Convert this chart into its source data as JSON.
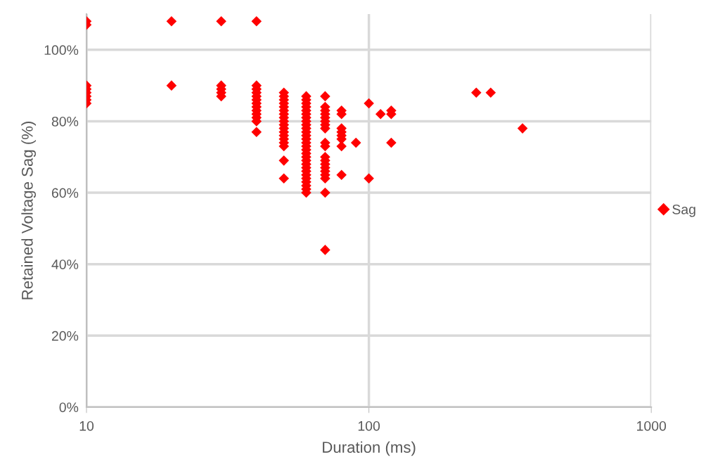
{
  "chart_data": {
    "type": "scatter",
    "xlabel": "Duration (ms)",
    "ylabel": "Retained Voltage Sag (%)",
    "log": "x",
    "xlim": [
      10,
      1000
    ],
    "xticks": [
      10,
      100,
      1000
    ],
    "ylim": [
      0,
      110
    ],
    "yticks": [
      {
        "value": 0,
        "label": "0%"
      },
      {
        "value": 20,
        "label": "20%"
      },
      {
        "value": 40,
        "label": "40%"
      },
      {
        "value": 60,
        "label": "60%"
      },
      {
        "value": 80,
        "label": "80%"
      },
      {
        "value": 100,
        "label": "100%"
      }
    ],
    "grid": true,
    "legend": "right",
    "marker": "diamond",
    "series": [
      {
        "name": "Sag",
        "color": "#ff0000",
        "x": [
          10,
          10,
          10,
          10,
          10,
          10,
          10,
          10,
          20,
          20,
          30,
          30,
          30,
          30,
          30,
          40,
          40,
          40,
          40,
          40,
          40,
          40,
          40,
          40,
          40,
          40,
          40,
          40,
          50,
          50,
          50,
          50,
          50,
          50,
          50,
          50,
          50,
          50,
          50,
          50,
          50,
          50,
          50,
          50,
          50,
          50,
          60,
          60,
          60,
          60,
          60,
          60,
          60,
          60,
          60,
          60,
          60,
          60,
          60,
          60,
          60,
          60,
          60,
          60,
          60,
          60,
          60,
          60,
          60,
          60,
          60,
          60,
          60,
          60,
          70,
          70,
          70,
          70,
          70,
          70,
          70,
          70,
          70,
          70,
          70,
          70,
          70,
          70,
          70,
          70,
          70,
          70,
          70,
          80,
          80,
          80,
          80,
          80,
          80,
          80,
          80,
          90,
          100,
          100,
          110,
          120,
          120,
          120,
          240,
          270,
          350
        ],
        "values": [
          108,
          107,
          90,
          89,
          88,
          87,
          86,
          85,
          108,
          90,
          108,
          90,
          89,
          88,
          87,
          108,
          90,
          89,
          88,
          87,
          86,
          85,
          84,
          83,
          82,
          81,
          80,
          77,
          88,
          87,
          86,
          85,
          84,
          83,
          82,
          81,
          80,
          79,
          78,
          77,
          76,
          75,
          74,
          73,
          69,
          64,
          87,
          86,
          85,
          84,
          83,
          82,
          81,
          80,
          79,
          78,
          77,
          76,
          75,
          74,
          73,
          72,
          71,
          70,
          69,
          68,
          67,
          66,
          65,
          64,
          63,
          62,
          61,
          60,
          87,
          84,
          83,
          82,
          81,
          80,
          79,
          78,
          74,
          73,
          70,
          69,
          68,
          67,
          66,
          65,
          64,
          60,
          44,
          83,
          82,
          78,
          77,
          76,
          75,
          73,
          65,
          74,
          85,
          64,
          82,
          83,
          82,
          74,
          88,
          88,
          78
        ]
      }
    ]
  }
}
